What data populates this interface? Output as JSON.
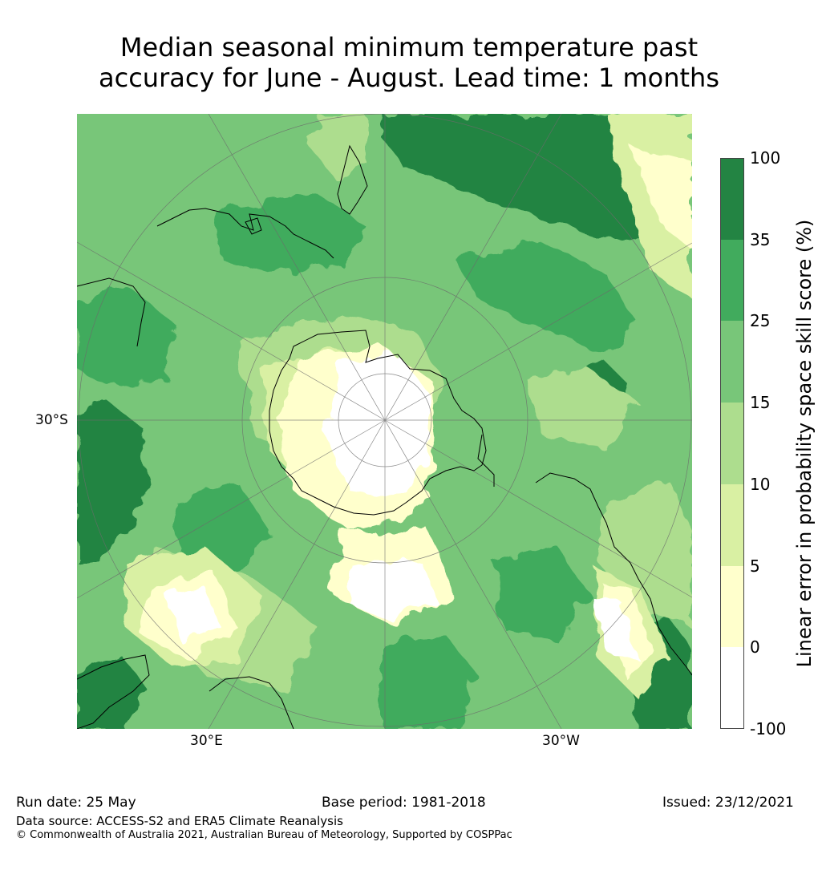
{
  "title": {
    "line1": "Median seasonal minimum temperature past",
    "line2": "accuracy for June - August. Lead time: 1 months"
  },
  "map": {
    "projection": "south-polar-stereographic",
    "graticule_labels": {
      "left_lat": "30°S",
      "bottom_lon_left": "30°E",
      "bottom_lon_right": "30°W"
    }
  },
  "colorbar": {
    "title": "Linear error in probability space skill score (%)",
    "levels": [
      "100",
      "35",
      "25",
      "15",
      "10",
      "5",
      "0",
      "-100"
    ],
    "bins": [
      {
        "from": 35,
        "to": 100,
        "color": "#238443"
      },
      {
        "from": 25,
        "to": 35,
        "color": "#41ab5d"
      },
      {
        "from": 15,
        "to": 25,
        "color": "#78c679"
      },
      {
        "from": 10,
        "to": 15,
        "color": "#addd8e"
      },
      {
        "from": 5,
        "to": 10,
        "color": "#d9f0a3"
      },
      {
        "from": 0,
        "to": 5,
        "color": "#ffffcc"
      },
      {
        "from": -100,
        "to": 0,
        "color": "#ffffff"
      }
    ]
  },
  "footer": {
    "run_date": "Run date: 25 May",
    "base_period": "Base period: 1981-2018",
    "issued": "Issued: 23/12/2021",
    "data_source": "Data source: ACCESS-S2 and ERA5 Climate Reanalysis",
    "copyright": "© Commonwealth of Australia 2021, Australian Bureau of Meteorology, Supported by COSPPac"
  }
}
